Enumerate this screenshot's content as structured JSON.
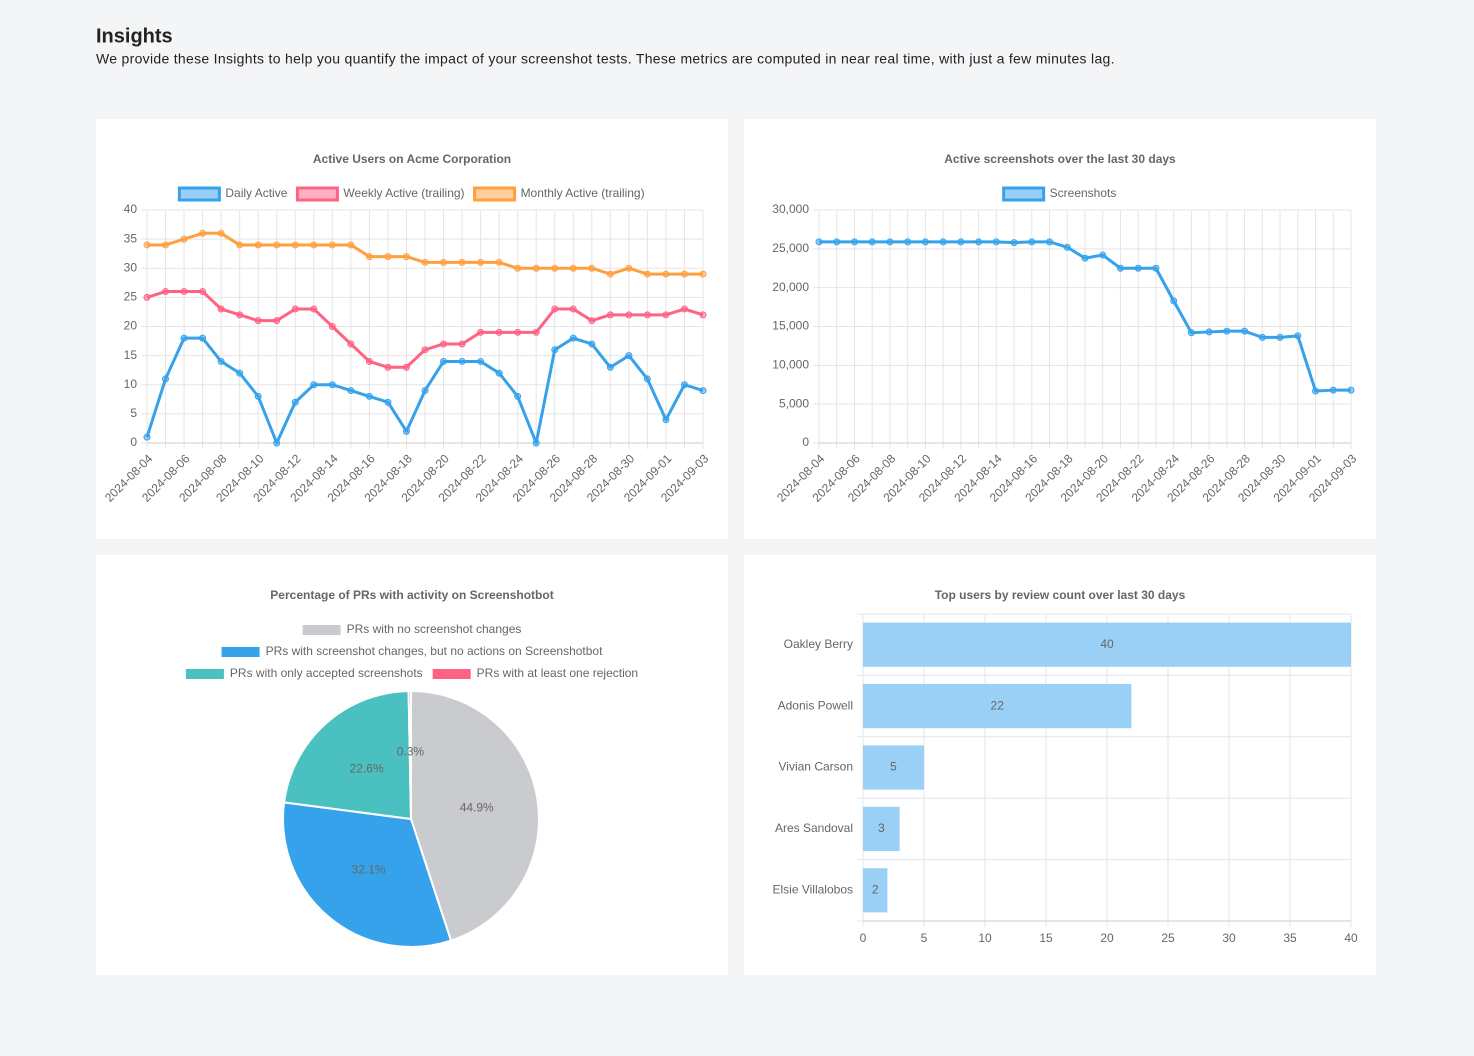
{
  "header": {
    "title": "Insights",
    "description": "We provide these Insights to help you quantify the impact of your screenshot tests. These metrics are computed in near real time, with just a few minutes lag."
  },
  "chart_data": [
    {
      "type": "line",
      "title": "Active Users on Acme Corporation",
      "categories": [
        "2024-08-04",
        null,
        "2024-08-06",
        null,
        "2024-08-08",
        null,
        "2024-08-10",
        null,
        "2024-08-12",
        null,
        "2024-08-14",
        null,
        "2024-08-16",
        null,
        "2024-08-18",
        null,
        "2024-08-20",
        null,
        "2024-08-22",
        null,
        "2024-08-24",
        null,
        "2024-08-26",
        null,
        "2024-08-28",
        null,
        "2024-08-30",
        null,
        "2024-09-01",
        null,
        "2024-09-03"
      ],
      "series": [
        {
          "name": "Daily Active",
          "color": "#36a2eb",
          "values": [
            1,
            11,
            18,
            18,
            14,
            12,
            8,
            0,
            7,
            10,
            10,
            9,
            8,
            7,
            2,
            9,
            14,
            14,
            14,
            12,
            8,
            0,
            16,
            18,
            17,
            13,
            15,
            11,
            4,
            10,
            9
          ]
        },
        {
          "name": "Weekly Active (trailing)",
          "color": "#ff6384",
          "values": [
            25,
            26,
            26,
            26,
            23,
            22,
            21,
            21,
            23,
            23,
            20,
            17,
            14,
            13,
            13,
            16,
            17,
            17,
            19,
            19,
            19,
            19,
            23,
            23,
            21,
            22,
            22,
            22,
            22,
            23,
            22
          ]
        },
        {
          "name": "Monthly Active (trailing)",
          "color": "#ff9f40",
          "values": [
            34,
            34,
            35,
            36,
            36,
            34,
            34,
            34,
            34,
            34,
            34,
            34,
            32,
            32,
            32,
            31,
            31,
            31,
            31,
            31,
            30,
            30,
            30,
            30,
            30,
            29,
            30,
            29,
            29,
            29,
            29
          ]
        }
      ],
      "ylim": [
        0,
        40
      ],
      "yticks": [
        0,
        5,
        10,
        15,
        20,
        25,
        30,
        35,
        40
      ],
      "grid": true,
      "legend": "top"
    },
    {
      "type": "line",
      "title": "Active screenshots over the last 30 days",
      "categories": [
        "2024-08-04",
        null,
        "2024-08-06",
        null,
        "2024-08-08",
        null,
        "2024-08-10",
        null,
        "2024-08-12",
        null,
        "2024-08-14",
        null,
        "2024-08-16",
        null,
        "2024-08-18",
        null,
        "2024-08-20",
        null,
        "2024-08-22",
        null,
        "2024-08-24",
        null,
        "2024-08-26",
        null,
        "2024-08-28",
        null,
        "2024-08-30",
        null,
        "2024-09-01",
        null,
        "2024-09-03"
      ],
      "series": [
        {
          "name": "Screenshots",
          "color": "#36a2eb",
          "values": [
            25900,
            25900,
            25900,
            25900,
            25900,
            25900,
            25900,
            25900,
            25900,
            25900,
            25900,
            25800,
            25900,
            25900,
            25200,
            23800,
            24200,
            22500,
            22500,
            22500,
            18300,
            14200,
            14300,
            14400,
            14400,
            13600,
            13600,
            13800,
            6700,
            6800,
            6800
          ]
        }
      ],
      "ylim": [
        0,
        30000
      ],
      "yticks": [
        0,
        {
          "value": 5000,
          "label": "5,000"
        },
        {
          "value": 10000,
          "label": "10,000"
        },
        {
          "value": 15000,
          "label": "15,000"
        },
        {
          "value": 20000,
          "label": "20,000"
        },
        {
          "value": 25000,
          "label": "25,000"
        },
        {
          "value": 30000,
          "label": "30,000"
        }
      ],
      "grid": true,
      "legend": "top"
    },
    {
      "type": "pie",
      "title": "Percentage of PRs with activity on Screenshotbot",
      "categories": [
        "PRs with no screenshot changes",
        "PRs with screenshot changes, but no actions on Screenshotbot",
        "PRs with only accepted screenshots",
        "PRs with at least one rejection"
      ],
      "values": [
        44.9,
        32.1,
        22.6,
        0.3
      ],
      "value_labels": [
        "44.9%",
        "32.1%",
        "22.6%",
        "0.3%"
      ],
      "colors": [
        "#c9cbcf",
        "#36a2eb",
        "#4bc0c0",
        "#ff6384"
      ],
      "legend": "top"
    },
    {
      "type": "bar",
      "orientation": "horizontal",
      "title": "Top users by review count over last 30 days",
      "categories": [
        "Oakley Berry",
        "Adonis Powell",
        "Vivian Carson",
        "Ares Sandoval",
        "Elsie Villalobos"
      ],
      "values": [
        40,
        22,
        5,
        3,
        2
      ],
      "color": "#9ad0f5",
      "xlim": [
        0,
        40
      ],
      "xticks": [
        0,
        5,
        10,
        15,
        20,
        25,
        30,
        35,
        40
      ],
      "grid": true
    }
  ]
}
